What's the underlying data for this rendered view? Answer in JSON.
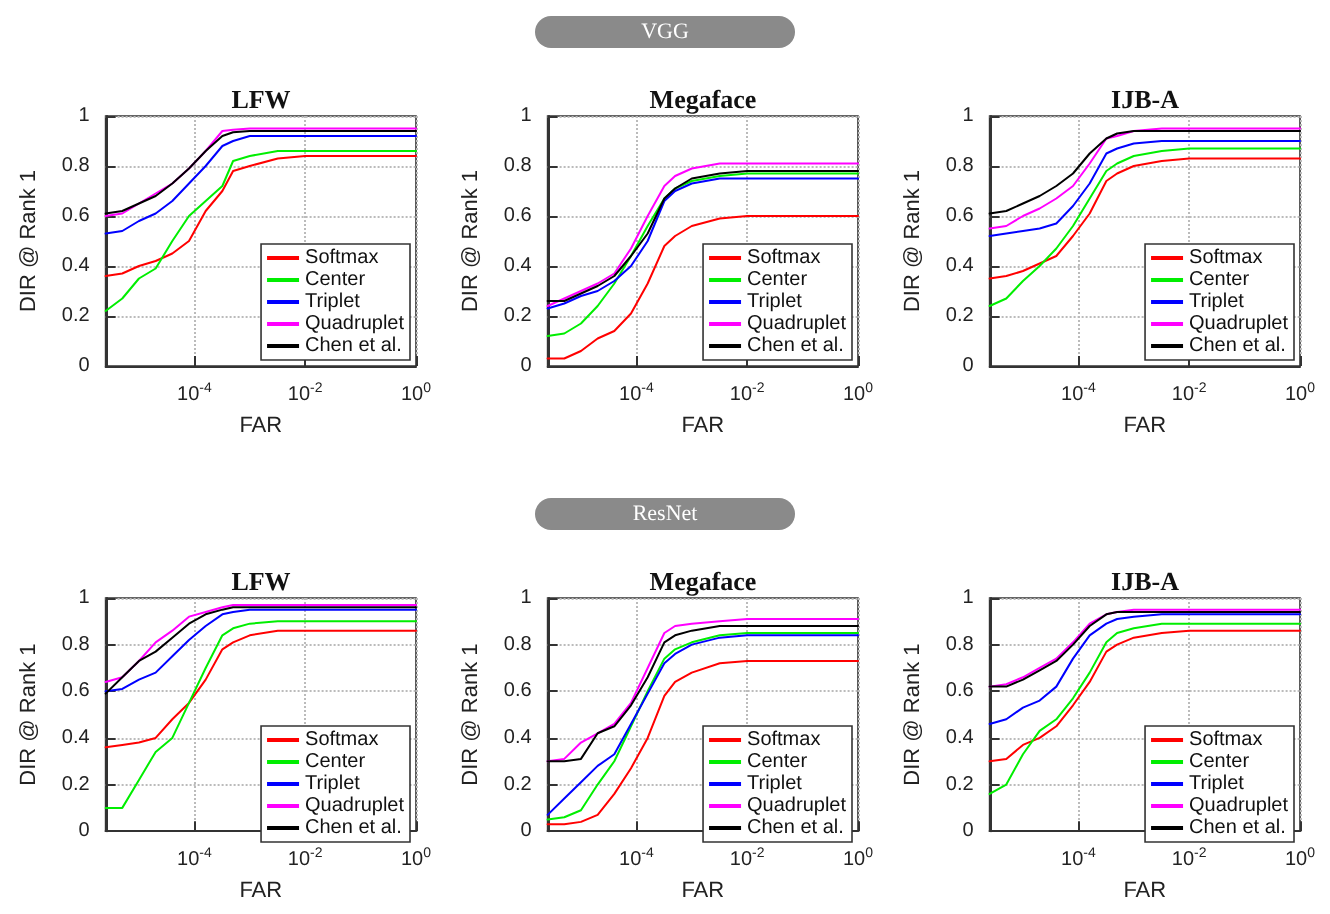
{
  "chart_data": [
    {
      "type": "line",
      "title": "LFW",
      "xlabel": "FAR",
      "ylabel": "DIR @ Rank 1",
      "log": "x",
      "grid": true,
      "legend": "bottom right",
      "xlim": [
        2.5e-06,
        1
      ],
      "ylim": [
        0,
        1
      ],
      "xticks": [
        {
          "value": 0.0001,
          "label": "10$^{-4}$"
        },
        {
          "value": 0.01,
          "label": "10$^{-2}$"
        },
        {
          "value": 1,
          "label": "10$^{0}$"
        }
      ],
      "yticks": [
        0,
        0.2,
        0.4,
        0.6,
        0.8,
        1
      ],
      "x": [
        2.5e-06,
        5e-06,
        1e-05,
        2e-05,
        4e-05,
        8e-05,
        0.00016,
        0.00032,
        0.0005,
        0.001,
        0.0032,
        0.01,
        0.1,
        1
      ],
      "series": [
        {
          "name": "Softmax",
          "color": "#ff0000",
          "values": [
            0.36,
            0.37,
            0.4,
            0.42,
            0.45,
            0.5,
            0.62,
            0.7,
            0.78,
            0.8,
            0.83,
            0.84,
            0.84,
            0.84
          ]
        },
        {
          "name": "Center",
          "color": "#00ee00",
          "values": [
            0.22,
            0.27,
            0.35,
            0.39,
            0.5,
            0.6,
            0.66,
            0.72,
            0.82,
            0.84,
            0.86,
            0.86,
            0.86,
            0.86
          ]
        },
        {
          "name": "Triplet",
          "color": "#0000ff",
          "values": [
            0.53,
            0.54,
            0.58,
            0.61,
            0.66,
            0.73,
            0.8,
            0.88,
            0.9,
            0.92,
            0.92,
            0.92,
            0.92,
            0.92
          ]
        },
        {
          "name": "Quadruplet",
          "color": "#ff00ff",
          "values": [
            0.6,
            0.61,
            0.65,
            0.69,
            0.73,
            0.79,
            0.86,
            0.94,
            0.945,
            0.95,
            0.95,
            0.95,
            0.95,
            0.95
          ]
        },
        {
          "name": "Chen et al.",
          "color": "#000000",
          "values": [
            0.61,
            0.62,
            0.65,
            0.68,
            0.73,
            0.79,
            0.86,
            0.92,
            0.935,
            0.94,
            0.94,
            0.94,
            0.94,
            0.94
          ]
        }
      ]
    },
    {
      "type": "line",
      "title": "Megaface",
      "xlabel": "FAR",
      "ylabel": "DIR @ Rank 1",
      "log": "x",
      "grid": true,
      "legend": "bottom right",
      "annotations": [
        "VGG"
      ],
      "xlim": [
        2.5e-06,
        1
      ],
      "ylim": [
        0,
        1
      ],
      "xticks": [
        {
          "value": 0.0001,
          "label": "10$^{-4}$"
        },
        {
          "value": 0.01,
          "label": "10$^{-2}$"
        },
        {
          "value": 1,
          "label": "10$^{0}$"
        }
      ],
      "yticks": [
        0,
        0.2,
        0.4,
        0.6,
        0.8,
        1
      ],
      "x": [
        2.5e-06,
        5e-06,
        1e-05,
        2e-05,
        4e-05,
        8e-05,
        0.00016,
        0.00032,
        0.0005,
        0.001,
        0.0032,
        0.01,
        0.1,
        1
      ],
      "series": [
        {
          "name": "Softmax",
          "color": "#ff0000",
          "values": [
            0.03,
            0.03,
            0.06,
            0.11,
            0.14,
            0.21,
            0.33,
            0.48,
            0.52,
            0.56,
            0.59,
            0.6,
            0.6,
            0.6
          ]
        },
        {
          "name": "Center",
          "color": "#00ee00",
          "values": [
            0.12,
            0.13,
            0.17,
            0.24,
            0.33,
            0.44,
            0.56,
            0.67,
            0.71,
            0.74,
            0.76,
            0.77,
            0.77,
            0.77
          ]
        },
        {
          "name": "Triplet",
          "color": "#0000ff",
          "values": [
            0.23,
            0.25,
            0.28,
            0.3,
            0.34,
            0.4,
            0.5,
            0.66,
            0.7,
            0.73,
            0.75,
            0.75,
            0.75,
            0.75
          ]
        },
        {
          "name": "Quadruplet",
          "color": "#ff00ff",
          "values": [
            0.24,
            0.27,
            0.3,
            0.33,
            0.37,
            0.47,
            0.6,
            0.72,
            0.76,
            0.79,
            0.81,
            0.81,
            0.81,
            0.81
          ]
        },
        {
          "name": "Chen et al.",
          "color": "#000000",
          "values": [
            0.26,
            0.26,
            0.29,
            0.32,
            0.36,
            0.44,
            0.53,
            0.67,
            0.71,
            0.75,
            0.77,
            0.78,
            0.78,
            0.78
          ]
        }
      ]
    },
    {
      "type": "line",
      "title": "IJB-A",
      "xlabel": "FAR",
      "ylabel": "DIR @ Rank 1",
      "log": "x",
      "grid": true,
      "legend": "bottom right",
      "xlim": [
        2.5e-06,
        1
      ],
      "ylim": [
        0,
        1
      ],
      "xticks": [
        {
          "value": 0.0001,
          "label": "10$^{-4}$"
        },
        {
          "value": 0.01,
          "label": "10$^{-2}$"
        },
        {
          "value": 1,
          "label": "10$^{0}$"
        }
      ],
      "yticks": [
        0,
        0.2,
        0.4,
        0.6,
        0.8,
        1
      ],
      "x": [
        2.5e-06,
        5e-06,
        1e-05,
        2e-05,
        4e-05,
        8e-05,
        0.00016,
        0.00032,
        0.0005,
        0.001,
        0.0032,
        0.01,
        0.1,
        1
      ],
      "series": [
        {
          "name": "Softmax",
          "color": "#ff0000",
          "values": [
            0.35,
            0.36,
            0.38,
            0.41,
            0.44,
            0.52,
            0.61,
            0.74,
            0.77,
            0.8,
            0.82,
            0.83,
            0.83,
            0.83
          ]
        },
        {
          "name": "Center",
          "color": "#00ee00",
          "values": [
            0.24,
            0.27,
            0.34,
            0.4,
            0.47,
            0.56,
            0.67,
            0.78,
            0.81,
            0.84,
            0.86,
            0.87,
            0.87,
            0.87
          ]
        },
        {
          "name": "Triplet",
          "color": "#0000ff",
          "values": [
            0.52,
            0.53,
            0.54,
            0.55,
            0.57,
            0.64,
            0.73,
            0.85,
            0.87,
            0.89,
            0.9,
            0.9,
            0.9,
            0.9
          ]
        },
        {
          "name": "Quadruplet",
          "color": "#ff00ff",
          "values": [
            0.55,
            0.56,
            0.6,
            0.63,
            0.67,
            0.72,
            0.81,
            0.91,
            0.92,
            0.94,
            0.95,
            0.95,
            0.95,
            0.95
          ]
        },
        {
          "name": "Chen et al.",
          "color": "#000000",
          "values": [
            0.61,
            0.62,
            0.65,
            0.68,
            0.72,
            0.77,
            0.85,
            0.91,
            0.93,
            0.94,
            0.94,
            0.94,
            0.94,
            0.94
          ]
        }
      ]
    },
    {
      "type": "line",
      "title": "LFW",
      "xlabel": "FAR",
      "ylabel": "DIR @ Rank 1",
      "log": "x",
      "grid": true,
      "legend": "bottom right",
      "xlim": [
        2.5e-06,
        1
      ],
      "ylim": [
        0,
        1
      ],
      "xticks": [
        {
          "value": 0.0001,
          "label": "10$^{-4}$"
        },
        {
          "value": 0.01,
          "label": "10$^{-2}$"
        },
        {
          "value": 1,
          "label": "10$^{0}$"
        }
      ],
      "yticks": [
        0,
        0.2,
        0.4,
        0.6,
        0.8,
        1
      ],
      "x": [
        2.5e-06,
        5e-06,
        1e-05,
        2e-05,
        4e-05,
        8e-05,
        0.00016,
        0.00032,
        0.0005,
        0.001,
        0.0032,
        0.01,
        0.1,
        1
      ],
      "series": [
        {
          "name": "Softmax",
          "color": "#ff0000",
          "values": [
            0.36,
            0.37,
            0.38,
            0.4,
            0.48,
            0.55,
            0.65,
            0.78,
            0.81,
            0.84,
            0.86,
            0.86,
            0.86,
            0.86
          ]
        },
        {
          "name": "Center",
          "color": "#00ee00",
          "values": [
            0.1,
            0.1,
            0.22,
            0.34,
            0.4,
            0.55,
            0.7,
            0.84,
            0.87,
            0.89,
            0.9,
            0.9,
            0.9,
            0.9
          ]
        },
        {
          "name": "Triplet",
          "color": "#0000ff",
          "values": [
            0.6,
            0.61,
            0.65,
            0.68,
            0.75,
            0.82,
            0.88,
            0.93,
            0.94,
            0.95,
            0.95,
            0.95,
            0.95,
            0.95
          ]
        },
        {
          "name": "Quadruplet",
          "color": "#ff00ff",
          "values": [
            0.64,
            0.66,
            0.73,
            0.81,
            0.86,
            0.92,
            0.94,
            0.96,
            0.97,
            0.97,
            0.97,
            0.97,
            0.97,
            0.97
          ]
        },
        {
          "name": "Chen et al.",
          "color": "#000000",
          "values": [
            0.59,
            0.66,
            0.73,
            0.77,
            0.83,
            0.89,
            0.93,
            0.95,
            0.96,
            0.96,
            0.96,
            0.96,
            0.96,
            0.96
          ]
        }
      ]
    },
    {
      "type": "line",
      "title": "Megaface",
      "xlabel": "FAR",
      "ylabel": "DIR @ Rank 1",
      "log": "x",
      "grid": true,
      "legend": "bottom right",
      "annotations": [
        "ResNet"
      ],
      "xlim": [
        2.5e-06,
        1
      ],
      "ylim": [
        0,
        1
      ],
      "xticks": [
        {
          "value": 0.0001,
          "label": "10$^{-4}$"
        },
        {
          "value": 0.01,
          "label": "10$^{-2}$"
        },
        {
          "value": 1,
          "label": "10$^{0}$"
        }
      ],
      "yticks": [
        0,
        0.2,
        0.4,
        0.6,
        0.8,
        1
      ],
      "x": [
        2.5e-06,
        5e-06,
        1e-05,
        2e-05,
        4e-05,
        8e-05,
        0.00016,
        0.00032,
        0.0005,
        0.001,
        0.0032,
        0.01,
        0.1,
        1
      ],
      "series": [
        {
          "name": "Softmax",
          "color": "#ff0000",
          "values": [
            0.03,
            0.03,
            0.04,
            0.07,
            0.16,
            0.27,
            0.4,
            0.58,
            0.64,
            0.68,
            0.72,
            0.73,
            0.73,
            0.73
          ]
        },
        {
          "name": "Center",
          "color": "#00ee00",
          "values": [
            0.05,
            0.06,
            0.09,
            0.2,
            0.3,
            0.45,
            0.6,
            0.74,
            0.78,
            0.81,
            0.84,
            0.85,
            0.85,
            0.85
          ]
        },
        {
          "name": "Triplet",
          "color": "#0000ff",
          "values": [
            0.07,
            0.14,
            0.21,
            0.28,
            0.33,
            0.46,
            0.59,
            0.72,
            0.76,
            0.8,
            0.83,
            0.84,
            0.84,
            0.84
          ]
        },
        {
          "name": "Quadruplet",
          "color": "#ff00ff",
          "values": [
            0.3,
            0.31,
            0.38,
            0.42,
            0.46,
            0.55,
            0.7,
            0.85,
            0.88,
            0.89,
            0.9,
            0.91,
            0.91,
            0.91
          ]
        },
        {
          "name": "Chen et al.",
          "color": "#000000",
          "values": [
            0.3,
            0.3,
            0.31,
            0.42,
            0.45,
            0.54,
            0.66,
            0.81,
            0.84,
            0.86,
            0.88,
            0.88,
            0.88,
            0.88
          ]
        }
      ]
    },
    {
      "type": "line",
      "title": "IJB-A",
      "xlabel": "FAR",
      "ylabel": "DIR @ Rank 1",
      "log": "x",
      "grid": true,
      "legend": "bottom right",
      "xlim": [
        2.5e-06,
        1
      ],
      "ylim": [
        0,
        1
      ],
      "xticks": [
        {
          "value": 0.0001,
          "label": "10$^{-4}$"
        },
        {
          "value": 0.01,
          "label": "10$^{-2}$"
        },
        {
          "value": 1,
          "label": "10$^{0}$"
        }
      ],
      "yticks": [
        0,
        0.2,
        0.4,
        0.6,
        0.8,
        1
      ],
      "x": [
        2.5e-06,
        5e-06,
        1e-05,
        2e-05,
        4e-05,
        8e-05,
        0.00016,
        0.00032,
        0.0005,
        0.001,
        0.0032,
        0.01,
        0.1,
        1
      ],
      "series": [
        {
          "name": "Softmax",
          "color": "#ff0000",
          "values": [
            0.3,
            0.31,
            0.37,
            0.4,
            0.45,
            0.54,
            0.64,
            0.77,
            0.8,
            0.83,
            0.85,
            0.86,
            0.86,
            0.86
          ]
        },
        {
          "name": "Center",
          "color": "#00ee00",
          "values": [
            0.16,
            0.2,
            0.33,
            0.43,
            0.48,
            0.57,
            0.68,
            0.81,
            0.85,
            0.87,
            0.89,
            0.89,
            0.89,
            0.89
          ]
        },
        {
          "name": "Triplet",
          "color": "#0000ff",
          "values": [
            0.46,
            0.48,
            0.53,
            0.56,
            0.62,
            0.74,
            0.84,
            0.89,
            0.91,
            0.92,
            0.93,
            0.93,
            0.93,
            0.93
          ]
        },
        {
          "name": "Quadruplet",
          "color": "#ff00ff",
          "values": [
            0.62,
            0.63,
            0.66,
            0.7,
            0.74,
            0.81,
            0.89,
            0.93,
            0.94,
            0.95,
            0.95,
            0.95,
            0.95,
            0.95
          ]
        },
        {
          "name": "Chen et al.",
          "color": "#000000",
          "values": [
            0.62,
            0.62,
            0.65,
            0.69,
            0.73,
            0.8,
            0.88,
            0.93,
            0.94,
            0.94,
            0.94,
            0.94,
            0.94,
            0.94
          ]
        }
      ]
    }
  ]
}
